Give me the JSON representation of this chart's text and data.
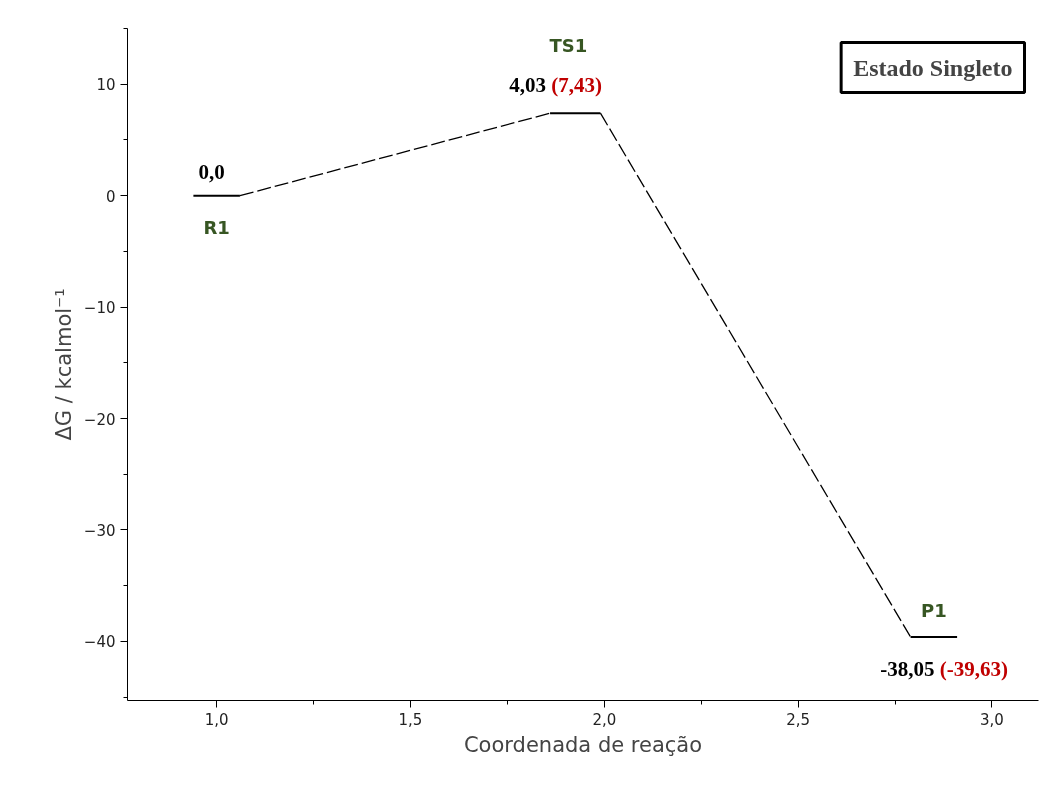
{
  "chart_data": {
    "type": "line",
    "title": "Estado Singleto",
    "xlabel": "Coordenada de reação",
    "ylabel": "ΔG / kcalmol⁻¹",
    "xlim": [
      0.77,
      3.12
    ],
    "ylim": [
      -45.3,
      15
    ],
    "xticks": [
      {
        "value": 1,
        "label": "1,0"
      },
      {
        "value": 1.5,
        "label": "1,5"
      },
      {
        "value": 2,
        "label": "2,0"
      },
      {
        "value": 2.5,
        "label": "2,5"
      },
      {
        "value": 3,
        "label": "3,0"
      }
    ],
    "yticks": [
      -40,
      -30,
      -20,
      -10,
      0,
      10
    ],
    "grid": false,
    "marker": "none",
    "series": [
      {
        "color": "#000000",
        "line_style": "solid",
        "x": [
          0.94,
          1.06
        ],
        "values": [
          0,
          0
        ]
      },
      {
        "color": "#000000",
        "line_style": "solid",
        "x": [
          1.86,
          1.99
        ],
        "values": [
          7.4,
          7.4
        ]
      },
      {
        "color": "#000000",
        "line_style": "solid",
        "x": [
          2.79,
          2.91
        ],
        "values": [
          -39.6,
          -39.6
        ]
      },
      {
        "color": "#000000",
        "line_style": "dashed",
        "x": [
          1.06,
          1.86
        ],
        "values": [
          0,
          7.4
        ]
      },
      {
        "color": "#000000",
        "line_style": "dashed",
        "x": [
          1.99,
          2.79
        ],
        "values": [
          7.4,
          -39.6
        ]
      }
    ],
    "annotations": [
      {
        "text": "R1",
        "x": 1.0,
        "y": 0
      },
      {
        "text": "0,0",
        "x": 1.0,
        "y": 0
      },
      "TS1",
      {
        "text": "4,03 (7,43)",
        "x": 1.92,
        "y": 7.4
      },
      {
        "text": "P1",
        "x": 2.85,
        "y": -39.6
      },
      {
        "text": "-38,05 (-39,63)",
        "x": 2.85,
        "y": -39.6
      }
    ]
  }
}
